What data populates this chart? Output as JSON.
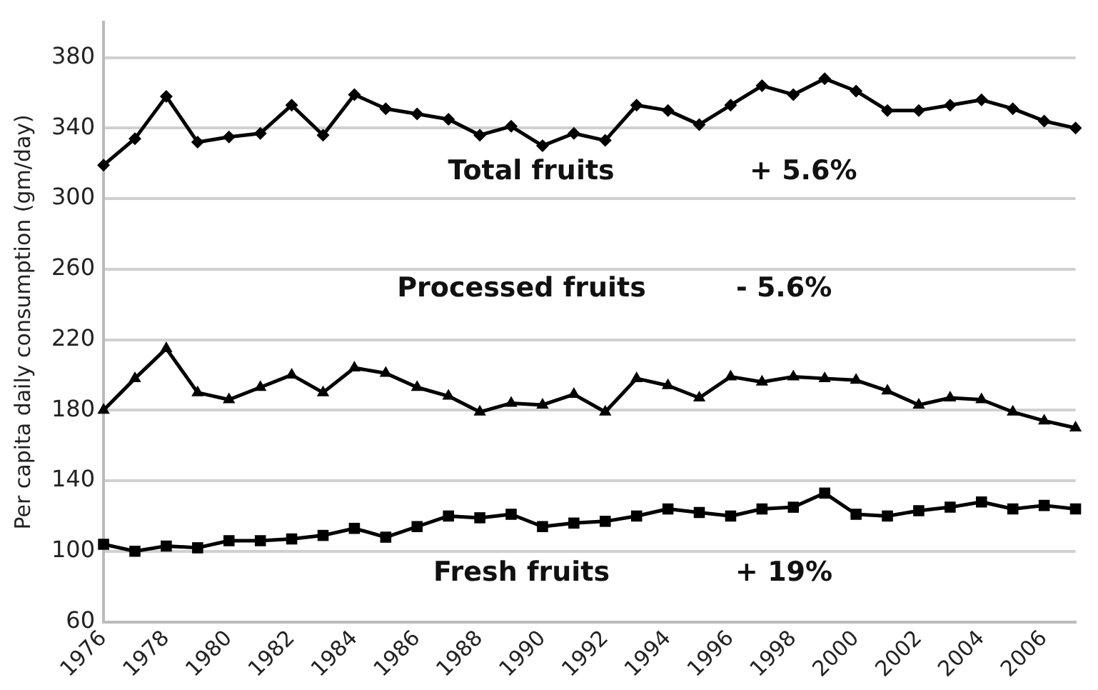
{
  "chart_data": {
    "type": "line",
    "ylabel": "Per capita daily consumption (gm/day)",
    "categories": [
      "1976",
      null,
      "1978",
      null,
      "1980",
      null,
      "1982",
      null,
      "1984",
      null,
      "1986",
      null,
      "1988",
      null,
      "1990",
      null,
      "1992",
      null,
      "1994",
      null,
      "1996",
      null,
      "1998",
      null,
      "2000",
      null,
      "2002",
      null,
      "2004",
      null,
      "2006",
      null
    ],
    "series": [
      {
        "name": "Total fruits",
        "color": "#000000",
        "marker": "diamond",
        "values": [
          319,
          334,
          358,
          332,
          335,
          337,
          353,
          336,
          359,
          351,
          348,
          345,
          336,
          341,
          330,
          337,
          333,
          353,
          350,
          342,
          353,
          364,
          359,
          368,
          361,
          350,
          350,
          353,
          356,
          351,
          344,
          340
        ]
      },
      {
        "name": "Processed fruits",
        "color": "#000000",
        "marker": "triangle",
        "values": [
          180,
          198,
          215,
          190,
          186,
          193,
          200,
          190,
          204,
          201,
          193,
          188,
          179,
          184,
          183,
          189,
          179,
          198,
          194,
          187,
          199,
          196,
          199,
          198,
          197,
          191,
          183,
          187,
          186,
          179,
          174,
          170
        ]
      },
      {
        "name": "Fresh fruits",
        "color": "#000000",
        "marker": "square",
        "values": [
          104,
          100,
          103,
          102,
          106,
          106,
          107,
          109,
          113,
          108,
          114,
          120,
          119,
          121,
          114,
          116,
          117,
          120,
          124,
          122,
          120,
          124,
          125,
          133,
          121,
          120,
          123,
          125,
          128,
          124,
          126,
          124
        ]
      }
    ],
    "annotations": [
      "+ 5.6%",
      "- 5.6%",
      "+ 19%"
    ],
    "ylim": [
      60,
      400
    ],
    "yticks": [
      60,
      100,
      140,
      180,
      220,
      260,
      300,
      340,
      380
    ],
    "grid": "y",
    "legend": false
  }
}
